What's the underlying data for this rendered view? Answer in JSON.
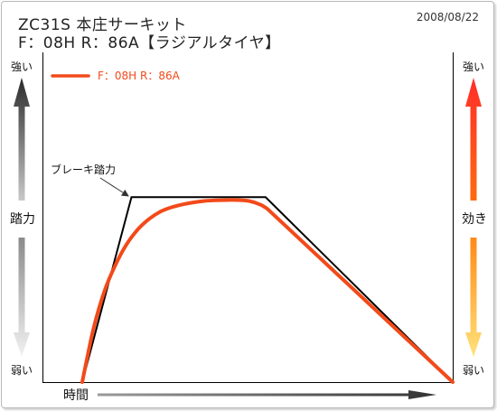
{
  "title_line1": "ZC31S  本庄サーキット",
  "title_line2": "F：08H R：86A【ラジアルタイヤ】",
  "date": "2008/08/22",
  "colors": {
    "brake_line": "#000000",
    "effect_line": "#f24a1a",
    "left_arrow": "#333333",
    "right_arrow_top": "#ff3a2a",
    "right_arrow_bottom": "#ffd066"
  },
  "left_axis": {
    "top": "強い",
    "middle": "踏力",
    "bottom": "弱い"
  },
  "right_axis": {
    "top": "強い",
    "middle": "効き",
    "bottom": "弱い"
  },
  "x_axis_label": "時間",
  "legend": {
    "label": "F：08H  R：86A"
  },
  "annotation": "ブレーキ踏力",
  "chart_data": {
    "type": "line",
    "title": "ZC31S  本庄サーキット",
    "subtitle": "F：08H R：86A【ラジアルタイヤ】",
    "xlabel": "時間",
    "ylabel_left": "踏力",
    "ylabel_right": "効き",
    "xlim": [
      0,
      100
    ],
    "ylim": [
      0,
      100
    ],
    "grid": false,
    "legend_position": "top-left",
    "series": [
      {
        "key": "brake",
        "label_text": "ブレーキ踏力",
        "x": [
          0,
          13.3,
          49.5,
          100
        ],
        "y": [
          0,
          63,
          63,
          0
        ]
      },
      {
        "key": "effect",
        "name": "F：08H  R：86A",
        "x": [
          0,
          3,
          6,
          9,
          12,
          15,
          18,
          21,
          24,
          27,
          30,
          33,
          36,
          39,
          42,
          45,
          48,
          50,
          100
        ],
        "y": [
          0,
          18,
          31,
          40,
          47,
          52,
          55.5,
          58,
          59.5,
          60.5,
          61.2,
          61.7,
          61.9,
          62,
          62,
          61.7,
          60.5,
          59,
          0
        ]
      }
    ]
  }
}
